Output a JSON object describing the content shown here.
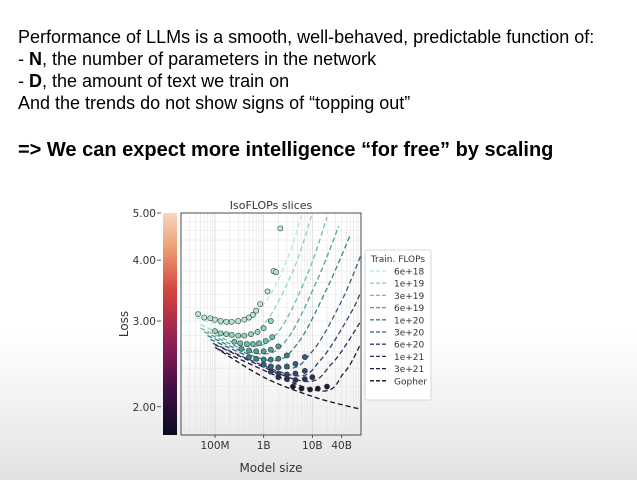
{
  "slide": {
    "line1": "Performance of LLMs is a smooth, well-behaved, predictable function of:",
    "line2_dash": "- ",
    "line2_bold": "N",
    "line2_rest": ", the number of parameters in the network",
    "line3_dash": "- ",
    "line3_bold": "D",
    "line3_rest": ", the amount of text we train on",
    "line4": "And the trends do not show signs of “topping out”",
    "conclusion": "=> We can expect more intelligence “for free” by scaling"
  },
  "chart_data": {
    "type": "scatter",
    "title": "IsoFLOPs slices",
    "xlabel": "Model size",
    "ylabel": "Loss",
    "x_scale": "log",
    "y_scale": "log",
    "xlim": [
      20000000,
      100000000000
    ],
    "ylim": [
      1.75,
      5.0
    ],
    "xticks": [
      "100M",
      "1B",
      "10B",
      "40B"
    ],
    "yticks": [
      "2.00",
      "3.00",
      "4.00",
      "5.00"
    ],
    "grid": true,
    "legend_title": "Train. FLOPs",
    "legend_placement": "right",
    "colorbar": true,
    "series": [
      {
        "name": "6e+18",
        "color": "#b7e8d2",
        "points": [
          [
            0.045,
            3.1
          ],
          [
            0.06,
            3.05
          ],
          [
            0.08,
            3.04
          ],
          [
            0.1,
            3.02
          ],
          [
            0.13,
            3.0
          ],
          [
            0.17,
            2.99
          ],
          [
            0.22,
            2.99
          ],
          [
            0.3,
            3.0
          ],
          [
            0.4,
            3.02
          ],
          [
            0.5,
            3.05
          ],
          [
            0.6,
            3.09
          ],
          [
            0.7,
            3.15
          ],
          [
            0.85,
            3.25
          ],
          [
            1.2,
            3.45
          ],
          [
            1.6,
            3.8
          ],
          [
            1.8,
            3.78
          ],
          [
            2.2,
            4.65
          ]
        ],
        "fit": [
          [
            0.04,
            3.05
          ],
          [
            0.2,
            2.95
          ],
          [
            1.0,
            3.25
          ],
          [
            3.0,
            4.0
          ],
          [
            6.0,
            4.95
          ]
        ]
      },
      {
        "name": "1e+19",
        "color": "#8fd6bc",
        "points": [
          [
            0.1,
            2.86
          ],
          [
            0.13,
            2.83
          ],
          [
            0.17,
            2.82
          ],
          [
            0.22,
            2.81
          ],
          [
            0.3,
            2.8
          ],
          [
            0.4,
            2.8
          ],
          [
            0.55,
            2.82
          ],
          [
            0.75,
            2.85
          ],
          [
            1.0,
            2.9
          ],
          [
            1.4,
            3.0
          ]
        ],
        "fit": [
          [
            0.05,
            2.95
          ],
          [
            0.25,
            2.78
          ],
          [
            1.0,
            2.95
          ],
          [
            4.0,
            3.8
          ],
          [
            10.0,
            5.0
          ]
        ]
      },
      {
        "name": "3e+19",
        "color": "#66c1a6",
        "points": [
          [
            0.25,
            2.72
          ],
          [
            0.33,
            2.7
          ],
          [
            0.45,
            2.69
          ],
          [
            0.6,
            2.69
          ],
          [
            0.8,
            2.7
          ],
          [
            1.1,
            2.73
          ],
          [
            1.5,
            2.78
          ]
        ],
        "fit": [
          [
            0.05,
            2.9
          ],
          [
            0.5,
            2.66
          ],
          [
            2.0,
            2.85
          ],
          [
            8.0,
            3.75
          ],
          [
            20.0,
            4.9
          ]
        ]
      },
      {
        "name": "6e+19",
        "color": "#4ba398",
        "points": [
          [
            0.35,
            2.63
          ],
          [
            0.5,
            2.61
          ],
          [
            0.7,
            2.6
          ],
          [
            1.0,
            2.6
          ],
          [
            1.4,
            2.62
          ],
          [
            2.0,
            2.66
          ]
        ],
        "fit": [
          [
            0.06,
            2.85
          ],
          [
            0.8,
            2.57
          ],
          [
            3.0,
            2.75
          ],
          [
            12.0,
            3.6
          ],
          [
            35.0,
            4.7
          ]
        ]
      },
      {
        "name": "1e+20",
        "color": "#38818a",
        "points": [
          [
            0.5,
            2.53
          ],
          [
            0.7,
            2.51
          ],
          [
            1.0,
            2.5
          ],
          [
            1.4,
            2.5
          ],
          [
            2.0,
            2.51
          ],
          [
            3.0,
            2.55
          ]
        ],
        "fit": [
          [
            0.07,
            2.8
          ],
          [
            1.3,
            2.49
          ],
          [
            5.0,
            2.7
          ],
          [
            20.0,
            3.5
          ],
          [
            60.0,
            4.5
          ]
        ]
      },
      {
        "name": "3e+20",
        "color": "#33607e",
        "points": [
          [
            1.0,
            2.44
          ],
          [
            1.4,
            2.42
          ],
          [
            2.0,
            2.41
          ],
          [
            3.0,
            2.42
          ],
          [
            4.5,
            2.45
          ],
          [
            7.0,
            2.53
          ]
        ],
        "fit": [
          [
            0.08,
            2.75
          ],
          [
            2.5,
            2.4
          ],
          [
            10.0,
            2.6
          ],
          [
            40.0,
            3.3
          ],
          [
            100.0,
            4.1
          ]
        ]
      },
      {
        "name": "6e+20",
        "color": "#2f4570",
        "points": [
          [
            1.4,
            2.36
          ],
          [
            2.0,
            2.34
          ],
          [
            3.0,
            2.33
          ],
          [
            4.5,
            2.34
          ],
          [
            7.0,
            2.37
          ]
        ],
        "fit": [
          [
            0.09,
            2.7
          ],
          [
            4.0,
            2.32
          ],
          [
            15.0,
            2.5
          ],
          [
            60.0,
            3.1
          ],
          [
            100.0,
            3.45
          ]
        ]
      },
      {
        "name": "1e+21",
        "color": "#2a2e55",
        "points": [
          [
            2.0,
            2.3
          ],
          [
            3.0,
            2.28
          ],
          [
            4.5,
            2.27
          ],
          [
            7.0,
            2.28
          ],
          [
            10.0,
            2.3
          ]
        ],
        "fit": [
          [
            0.1,
            2.68
          ],
          [
            6.0,
            2.26
          ],
          [
            25.0,
            2.45
          ],
          [
            100.0,
            3.0
          ]
        ]
      },
      {
        "name": "3e+21",
        "color": "#1e1b3a",
        "points": [
          [
            4.0,
            2.2
          ],
          [
            6.0,
            2.18
          ],
          [
            9.0,
            2.17
          ],
          [
            13.0,
            2.18
          ],
          [
            20.0,
            2.2
          ]
        ],
        "fit": [
          [
            0.12,
            2.62
          ],
          [
            12.0,
            2.16
          ],
          [
            45.0,
            2.35
          ],
          [
            100.0,
            2.7
          ]
        ]
      },
      {
        "name": "Gopher",
        "color": "#0d0d16",
        "points": [],
        "fit": [
          [
            0.1,
            2.65
          ],
          [
            1.0,
            2.3
          ],
          [
            10.0,
            2.1
          ],
          [
            60.0,
            2.0
          ],
          [
            100.0,
            1.98
          ]
        ]
      }
    ]
  }
}
